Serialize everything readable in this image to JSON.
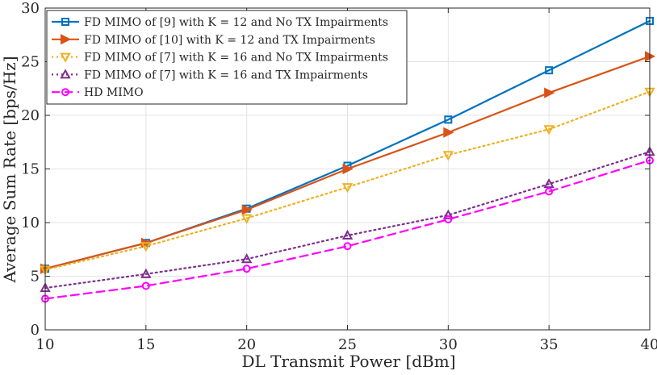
{
  "chart_data": {
    "type": "line",
    "title": "",
    "xlabel": "DL Transmit Power [dBm]",
    "ylabel": "Average Sum Rate [bps/Hz]",
    "x": [
      10,
      15,
      20,
      25,
      30,
      35,
      40
    ],
    "xlim": [
      10,
      40
    ],
    "ylim": [
      0,
      30
    ],
    "xticks": [
      10,
      15,
      20,
      25,
      30,
      35,
      40
    ],
    "yticks": [
      0,
      5,
      10,
      15,
      20,
      25,
      30
    ],
    "grid": true,
    "legend_position": "top-left",
    "series": [
      {
        "name": "FD MIMO of [9] with K = 12 and No TX Impairments",
        "color": "#0072bd",
        "dash": "solid",
        "marker": "square",
        "values": [
          5.7,
          8.1,
          11.3,
          15.3,
          19.6,
          24.2,
          28.8
        ]
      },
      {
        "name": "FD MIMO of [10] with K = 12 and TX Impairments",
        "color": "#d95319",
        "dash": "solid",
        "marker": "triangle-right",
        "values": [
          5.7,
          8.1,
          11.2,
          15.0,
          18.4,
          22.1,
          25.5
        ]
      },
      {
        "name": "FD MIMO of [7] with K = 16 and No TX Impairments",
        "color": "#edb120",
        "dash": "dotted",
        "marker": "triangle-down",
        "values": [
          5.6,
          7.8,
          10.4,
          13.3,
          16.3,
          18.7,
          22.2
        ]
      },
      {
        "name": "FD MIMO of [7] with K = 16 and TX Impairments",
        "color": "#7e2f8e",
        "dash": "dotted",
        "marker": "triangle-up",
        "values": [
          3.9,
          5.2,
          6.6,
          8.8,
          10.7,
          13.6,
          16.6
        ]
      },
      {
        "name": "HD MIMO",
        "color": "#ff00ff",
        "dash": "dashed",
        "marker": "circle",
        "values": [
          2.9,
          4.1,
          5.7,
          7.8,
          10.3,
          12.9,
          15.8
        ]
      }
    ]
  },
  "legend_labels": [
    "FD MIMO of [9] with K = 12 and No TX Impairments",
    "FD MIMO of [10] with K = 12 and TX Impairments",
    "FD MIMO of [7] with K = 16 and No TX Impairments",
    "FD MIMO of [7] with K = 16 and TX Impairments",
    "HD MIMO"
  ]
}
